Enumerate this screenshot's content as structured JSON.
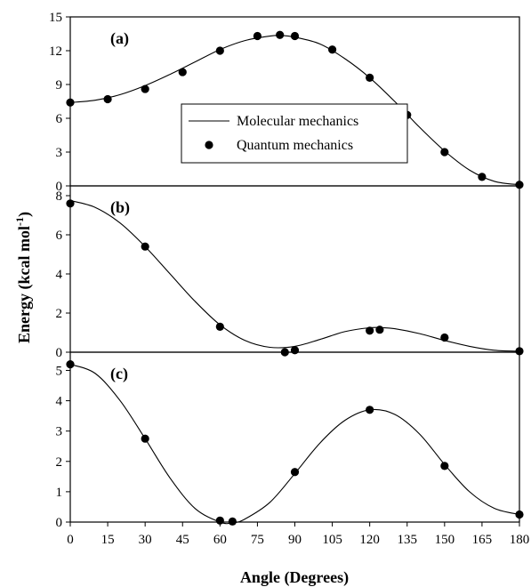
{
  "chart_data": {
    "type": "line",
    "xlabel": "Angle (Degrees)",
    "ylabel": "Energy (kcal mol",
    "ylabel_sup": "-1",
    "ylabel_close": ")",
    "xlim": [
      0,
      180
    ],
    "xticks": [
      0,
      15,
      30,
      45,
      60,
      75,
      90,
      105,
      120,
      135,
      150,
      165,
      180
    ],
    "grid": false,
    "legend": {
      "placement": "inside panel (a), center-right",
      "entries": [
        {
          "label": "Molecular mechanics",
          "marker": "line"
        },
        {
          "label": "Quantum mechanics",
          "marker": "filled-circle"
        }
      ]
    },
    "panels": [
      {
        "label": "(a)",
        "ylim": [
          0,
          15
        ],
        "yticks": [
          0,
          3,
          6,
          9,
          12,
          15
        ],
        "mm_curve": {
          "x": [
            0,
            10,
            20,
            30,
            40,
            50,
            60,
            70,
            80,
            85,
            90,
            100,
            110,
            120,
            130,
            140,
            150,
            160,
            170,
            180
          ],
          "y": [
            7.4,
            7.6,
            8.1,
            8.9,
            9.9,
            11.0,
            12.1,
            12.9,
            13.3,
            13.35,
            13.2,
            12.6,
            11.3,
            9.6,
            7.5,
            5.2,
            3.1,
            1.4,
            0.4,
            0.1
          ]
        },
        "qm_points": {
          "x": [
            0,
            15,
            30,
            45,
            60,
            75,
            84,
            90,
            105,
            120,
            135,
            150,
            165,
            180
          ],
          "y": [
            7.4,
            7.7,
            8.6,
            10.1,
            12.0,
            13.3,
            13.4,
            13.3,
            12.1,
            9.6,
            6.3,
            3.0,
            0.8,
            0.1
          ]
        }
      },
      {
        "label": "(b)",
        "ylim": [
          0,
          8.5
        ],
        "yticks": [
          0,
          2,
          4,
          6,
          8
        ],
        "mm_curve": {
          "x": [
            0,
            10,
            20,
            30,
            40,
            50,
            60,
            70,
            80,
            90,
            100,
            110,
            120,
            125,
            130,
            140,
            150,
            160,
            170,
            180
          ],
          "y": [
            7.75,
            7.4,
            6.6,
            5.4,
            4.0,
            2.6,
            1.4,
            0.6,
            0.25,
            0.3,
            0.65,
            1.05,
            1.25,
            1.25,
            1.2,
            0.95,
            0.6,
            0.3,
            0.1,
            0.05
          ]
        },
        "qm_points": {
          "x": [
            0,
            30,
            60,
            86,
            90,
            120,
            124,
            150,
            180
          ],
          "y": [
            7.6,
            5.4,
            1.3,
            0.0,
            0.1,
            1.1,
            1.15,
            0.75,
            0.05
          ]
        }
      },
      {
        "label": "(c)",
        "ylim": [
          0,
          5.6
        ],
        "yticks": [
          0,
          1,
          2,
          3,
          4,
          5
        ],
        "mm_curve": {
          "x": [
            0,
            10,
            20,
            30,
            40,
            50,
            60,
            65,
            70,
            80,
            90,
            100,
            110,
            120,
            130,
            140,
            150,
            160,
            170,
            180
          ],
          "y": [
            5.2,
            4.9,
            4.0,
            2.75,
            1.45,
            0.45,
            0.0,
            -0.03,
            0.1,
            0.65,
            1.6,
            2.6,
            3.35,
            3.7,
            3.55,
            2.9,
            1.9,
            1.0,
            0.45,
            0.25
          ]
        },
        "qm_points": {
          "x": [
            0,
            30,
            60,
            65,
            90,
            120,
            150,
            180
          ],
          "y": [
            5.2,
            2.75,
            0.05,
            0.02,
            1.65,
            3.7,
            1.85,
            0.25
          ]
        }
      }
    ]
  }
}
